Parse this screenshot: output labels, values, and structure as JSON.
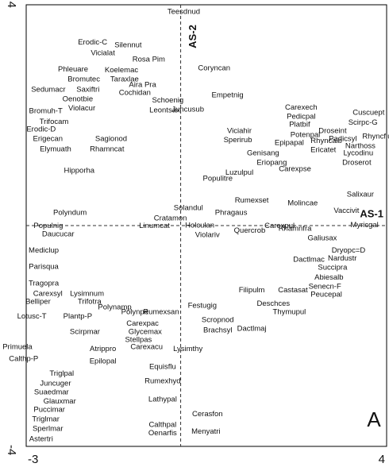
{
  "chart_data": {
    "type": "scatter",
    "annotations": [
      "AS-1",
      "AS-2",
      "A"
    ],
    "xlim": [
      -3,
      4
    ],
    "ylim": [
      -4,
      4
    ],
    "xticks": [
      -3,
      4
    ],
    "yticks": [
      -4,
      4
    ],
    "color": "#111111",
    "labels": [
      "Teesdnud",
      "Erodic-C",
      "Silennut",
      "Vicialat",
      "Rosa Pim",
      "Coryncan",
      "Phleuare",
      "Koelemac",
      "Bromutec",
      "Taraxlae",
      "Sedumacr",
      "Saxiftri",
      "Aira Pra",
      "Cochidan",
      "Empetnig",
      "Oenotbie",
      "Schoenig",
      "Violacur",
      "Bromuh-T",
      "Juncusub",
      "Leontsax",
      "Carexech",
      "Cuscuept",
      "Pedicpal",
      "Scirpc-G",
      "Trifocam",
      "Platbif",
      "Erodic-D",
      "Droseint",
      "Viciahir",
      "Rhyncflus",
      "Potenpal",
      "Padicsyl",
      "Erigecan",
      "Sperirub",
      "Epipapal",
      "Rhyncalb",
      "Narthoss",
      "Sagionod",
      "Ericatet",
      "Lycodinu",
      "Elymuath",
      "Rhamncat",
      "Genisang",
      "Droserot",
      "Eriopang",
      "Carexpse",
      "Hipporha",
      "Luzulpul",
      "Salixaur",
      "Molincae",
      "Vaccivit",
      "Populitre",
      "Polyndum",
      "Solandul",
      "Cratamon",
      "Phragaus",
      "Rumexset",
      "Populnig",
      "Linumcat",
      "Holculan",
      "Quercrob",
      "Rhamnfra",
      "Myricgal",
      "Daucucar",
      "Carexpul",
      "Violariv",
      "Galiusax",
      "Dryopc=D",
      "Mediclup",
      "Nardustr",
      "Dactlmac",
      "Succipra",
      "Abiesalb",
      "Parisqua",
      "Tragopra",
      "Senecn-F",
      "Carexsyl",
      "Castasat",
      "Peucepal",
      "Belliper",
      "Lysimnum",
      "Trifotra",
      "Filipulm",
      "Deschces",
      "Thymupul",
      "Lotusc-T",
      "Plantp-P",
      "Polynamp",
      "Polynpe",
      "Festugig",
      "Rumexsan",
      "Scropnod",
      "Dactlmaj",
      "Carexpac",
      "Brachsyl",
      "Glycemax",
      "Stellpas",
      "Primuela",
      "Scirpmar",
      "Carexacu",
      "Lysimthy",
      "Calthp-P",
      "Atrippro",
      "Epilopal",
      "Equisflu",
      "Triglpal",
      "Rumexhyd",
      "Juncuger",
      "Suaedmar",
      "Glauxmar",
      "Puccimar",
      "Lathypal",
      "Triglmar",
      "Cerasfon",
      "Sperlmar",
      "Calthpal",
      "Oenarfis",
      "Menyatri",
      "Astertri"
    ],
    "x": [
      0.06,
      -1.71,
      -1.02,
      -1.51,
      -0.62,
      0.65,
      -2.09,
      -1.15,
      -1.88,
      -1.09,
      -2.57,
      -1.8,
      -0.74,
      -0.89,
      0.91,
      -2.0,
      -0.25,
      -1.92,
      -2.62,
      0.14,
      -0.31,
      2.34,
      3.65,
      2.34,
      3.54,
      -2.46,
      2.31,
      -2.71,
      2.95,
      1.14,
      3.85,
      2.42,
      3.15,
      -2.58,
      1.11,
      2.11,
      2.83,
      3.49,
      -1.35,
      2.77,
      3.45,
      -2.43,
      -1.43,
      1.6,
      3.42,
      1.77,
      2.22,
      -1.97,
      1.14,
      3.49,
      2.37,
      3.22,
      0.72,
      -2.15,
      0.15,
      -0.2,
      0.98,
      1.38,
      -2.57,
      -0.51,
      0.37,
      1.34,
      2.22,
      3.57,
      -2.38,
      1.92,
      0.52,
      2.75,
      3.26,
      -2.66,
      3.14,
      2.49,
      2.95,
      2.88,
      -2.66,
      -2.66,
      2.8,
      -2.58,
      2.18,
      2.83,
      -2.77,
      -1.82,
      -1.77,
      1.38,
      1.8,
      2.11,
      -2.89,
      -2.0,
      -1.28,
      -0.89,
      0.42,
      -0.38,
      0.72,
      1.38,
      -0.74,
      0.72,
      -0.69,
      -0.82,
      -3.17,
      -1.86,
      -0.66,
      0.14,
      -3.05,
      -1.51,
      -1.51,
      -0.35,
      -2.31,
      -0.35,
      -2.43,
      -2.51,
      -2.35,
      -2.55,
      -0.35,
      -2.62,
      0.52,
      -2.58,
      -0.35,
      -0.35,
      0.49,
      -2.71
    ],
    "values": [
      3.87,
      3.32,
      3.27,
      3.12,
      3.01,
      2.85,
      2.83,
      2.81,
      2.65,
      2.65,
      2.46,
      2.46,
      2.55,
      2.4,
      2.36,
      2.29,
      2.27,
      2.12,
      2.07,
      2.1,
      2.09,
      2.14,
      2.04,
      1.97,
      1.86,
      1.88,
      1.83,
      1.74,
      1.71,
      1.71,
      1.61,
      1.64,
      1.57,
      1.57,
      1.55,
      1.5,
      1.53,
      1.44,
      1.57,
      1.37,
      1.31,
      1.38,
      1.38,
      1.31,
      1.14,
      1.14,
      1.02,
      0.99,
      0.96,
      0.56,
      0.4,
      0.27,
      0.85,
      0.23,
      0.32,
      0.13,
      0.23,
      0.45,
      -0.01,
      -0.01,
      0,
      -0.09,
      -0.06,
      0.01,
      -0.16,
      -0.01,
      -0.17,
      -0.23,
      -0.45,
      -0.45,
      -0.6,
      -0.62,
      -0.76,
      -0.94,
      -0.75,
      -1.05,
      -1.11,
      -1.24,
      -1.17,
      -1.25,
      -1.38,
      -1.24,
      -1.38,
      -1.17,
      -1.42,
      -1.57,
      -1.65,
      -1.65,
      -1.48,
      -1.57,
      -1.45,
      -1.57,
      -1.71,
      -1.87,
      -1.78,
      -1.9,
      -1.93,
      -2.07,
      -2.2,
      -1.93,
      -2.2,
      -2.24,
      -2.42,
      -2.24,
      -2.46,
      -2.56,
      -2.68,
      -2.82,
      -2.86,
      -3.02,
      -3.19,
      -3.34,
      -3.15,
      -3.51,
      -3.42,
      -3.68,
      -3.61,
      -3.76,
      -3.73,
      -3.87
    ]
  }
}
